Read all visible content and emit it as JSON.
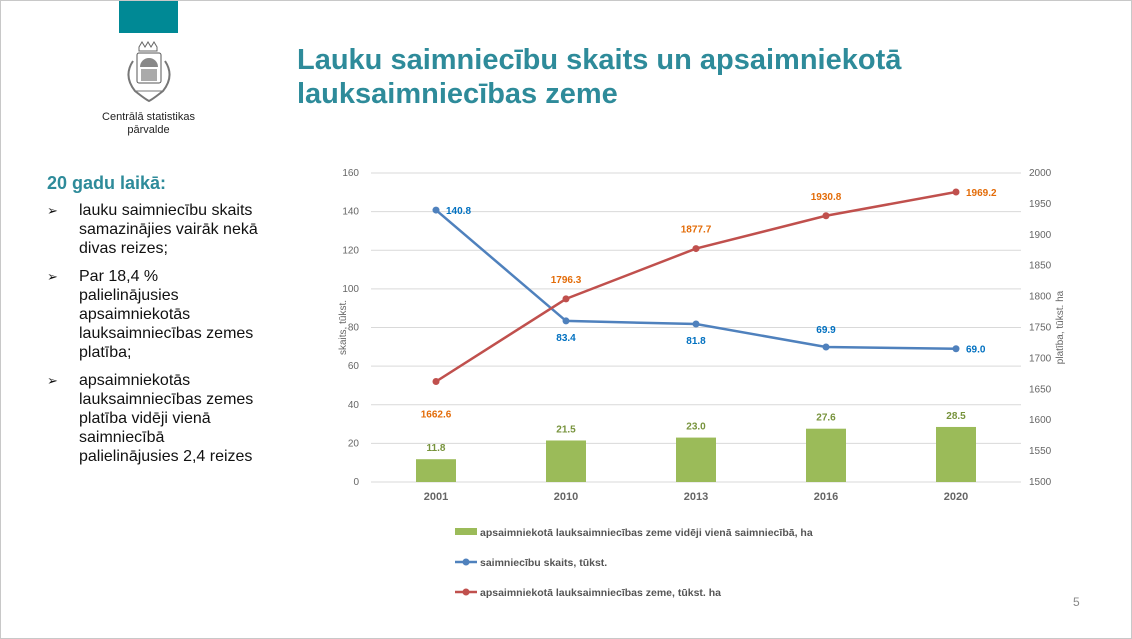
{
  "header": {
    "title": "Lauku saimniecību skaits un apsaimniekotā lauksaimniecības zeme",
    "org_name": "Centrālā statistikas pārvalde",
    "accent": "#008995"
  },
  "sidebar": {
    "heading": "20 gadu laikā:",
    "bullets": [
      "lauku saimniecību skaits samazinājies vairāk nekā divas reizes;",
      "Par 18,4 % palielinājusies apsaimniekotās lauksaimniecības zemes platība;",
      "apsaimniekotās lauksaimniecības zemes platība vidēji vienā saimniecībā palielinājusies 2,4 reizes"
    ]
  },
  "page_number": "5",
  "chart_data": {
    "type": "bar+line",
    "categories": [
      "2001",
      "2010",
      "2013",
      "2016",
      "2020"
    ],
    "ylabel": "skaits, tūkst.",
    "ylabel_right": "platība, tūkst. ha",
    "ylim": [
      0,
      160
    ],
    "yticks": [
      0,
      20,
      40,
      60,
      80,
      100,
      120,
      140,
      160
    ],
    "ylim_right": [
      1500,
      2000
    ],
    "yticks_right": [
      1500,
      1550,
      1600,
      1650,
      1700,
      1750,
      1800,
      1850,
      1900,
      1950,
      2000
    ],
    "legend_position": "bottom",
    "series": [
      {
        "name": "apsaimniekotā lauksaimniecības zeme vidēji vienā saimniecībā, ha",
        "type": "bar",
        "axis": "left",
        "color": "#9bbb59",
        "label_color": "#77933c",
        "values": [
          11.8,
          21.5,
          23.0,
          27.6,
          28.5
        ],
        "labels": [
          "11.8",
          "21.5",
          "23.0",
          "27.6",
          "28.5"
        ]
      },
      {
        "name": "saimniecību skaits, tūkst.",
        "type": "line",
        "axis": "left",
        "color": "#4f81bd",
        "label_color": "#0070c0",
        "values": [
          140.8,
          83.4,
          81.8,
          69.9,
          69.0
        ],
        "labels": [
          "140.8",
          "83.4",
          "81.8",
          "69.9",
          "69.0"
        ]
      },
      {
        "name": "apsaimniekotā lauksaimniecības zeme, tūkst. ha",
        "type": "line",
        "axis": "right",
        "color": "#c0504d",
        "label_color": "#e36c09",
        "values": [
          1662.6,
          1796.3,
          1877.7,
          1930.8,
          1969.2
        ],
        "labels": [
          "1662.6",
          "1796.3",
          "1877.7",
          "1930.8",
          "1969.2"
        ]
      }
    ]
  }
}
